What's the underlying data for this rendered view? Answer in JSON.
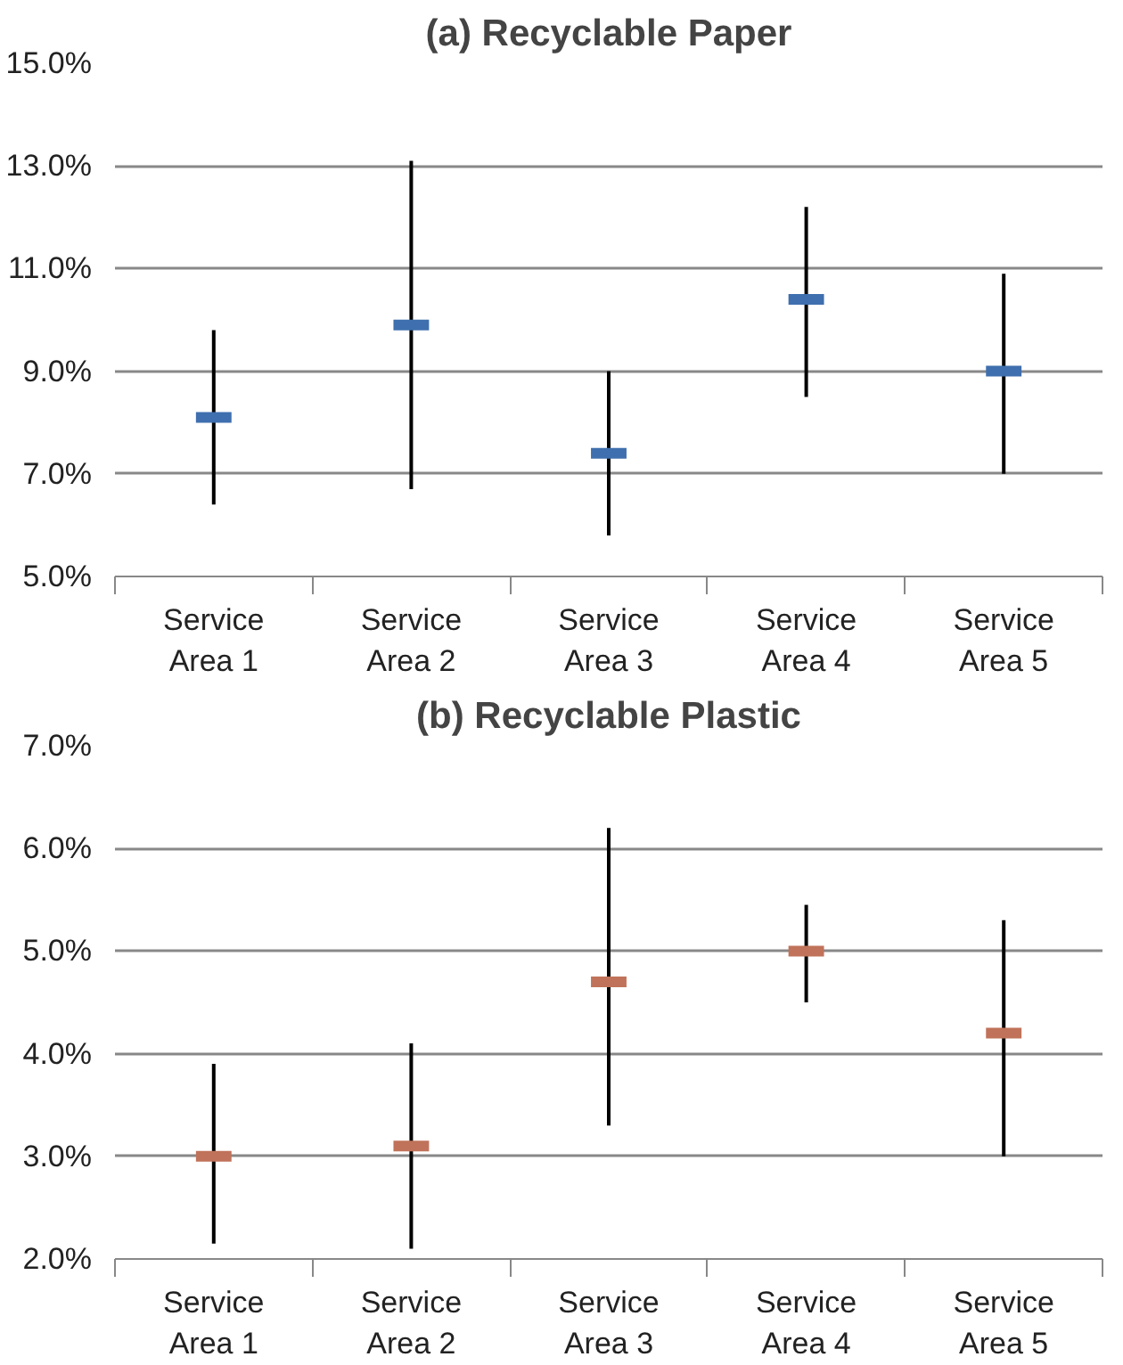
{
  "chart_data": [
    {
      "type": "scatter",
      "title": "(a) Recyclable Paper",
      "categories": [
        "Service Area 1",
        "Service Area 2",
        "Service Area 3",
        "Service Area 4",
        "Service Area 5"
      ],
      "series": [
        {
          "color": "#3f6fae",
          "values": [
            8.1,
            9.9,
            7.4,
            10.4,
            9.0
          ],
          "errors": [
            [
              6.4,
              9.8
            ],
            [
              6.7,
              13.1
            ],
            [
              5.8,
              9.0
            ],
            [
              8.5,
              12.2
            ],
            [
              7.0,
              10.9
            ]
          ]
        }
      ],
      "ylim": [
        5,
        15
      ],
      "yticks": [
        {
          "value": 5,
          "label": "5.0%"
        },
        {
          "value": 7,
          "label": "7.0%"
        },
        {
          "value": 9,
          "label": "9.0%"
        },
        {
          "value": 11,
          "label": "11.0%"
        },
        {
          "value": 13,
          "label": "13.0%"
        },
        {
          "value": 15,
          "label": "15.0%"
        }
      ],
      "grid": "y"
    },
    {
      "type": "scatter",
      "title": "(b) Recyclable Plastic",
      "categories": [
        "Service Area 1",
        "Service Area 2",
        "Service Area 3",
        "Service Area 4",
        "Service Area 5"
      ],
      "series": [
        {
          "color": "#c0735a",
          "values": [
            3.0,
            3.1,
            4.7,
            5.0,
            4.2
          ],
          "errors": [
            [
              2.15,
              3.9
            ],
            [
              2.1,
              4.1
            ],
            [
              3.3,
              6.2
            ],
            [
              4.5,
              5.45
            ],
            [
              3.0,
              5.3
            ]
          ]
        }
      ],
      "ylim": [
        2,
        7
      ],
      "yticks": [
        {
          "value": 2,
          "label": "2.0%"
        },
        {
          "value": 3,
          "label": "3.0%"
        },
        {
          "value": 4,
          "label": "4.0%"
        },
        {
          "value": 5,
          "label": "5.0%"
        },
        {
          "value": 6,
          "label": "6.0%"
        },
        {
          "value": 7,
          "label": "7.0%"
        }
      ],
      "grid": "y"
    }
  ]
}
